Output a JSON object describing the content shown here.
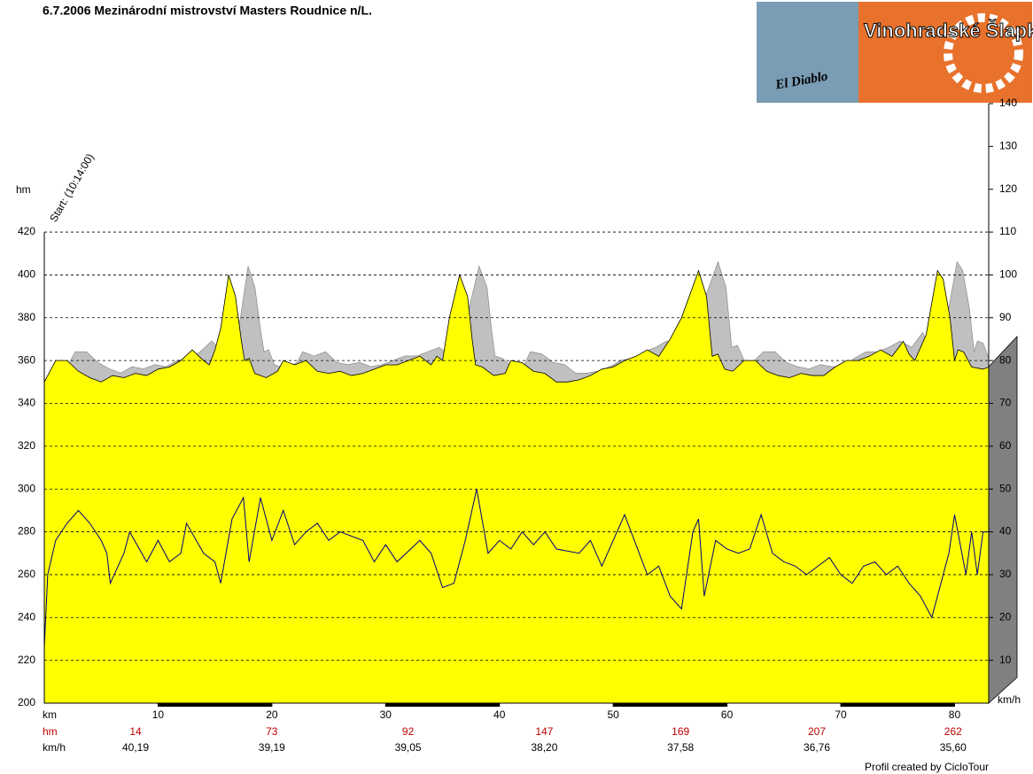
{
  "chart_data": {
    "type": "profile",
    "title": "6.7.2006 Mezinárodní mistrovství Masters Roudnice n/L.",
    "annotation": "Start: (10:14:00)",
    "footer": "Profil created by CicloTour",
    "logos": [
      "El Diablo",
      "Vinohradské Šlapky"
    ],
    "ylabel": "hm",
    "y2label": "km/h",
    "xlabel": "km",
    "xlim": [
      0,
      83
    ],
    "xticks": [
      10,
      20,
      30,
      40,
      50,
      60,
      70,
      80
    ],
    "ylim": [
      200,
      480
    ],
    "yticks": [
      200,
      220,
      240,
      260,
      280,
      300,
      320,
      340,
      360,
      380,
      400,
      420
    ],
    "y2lim": [
      0,
      140
    ],
    "y2ticks": [
      10,
      20,
      30,
      40,
      50,
      60,
      70,
      80,
      90,
      100,
      110,
      120,
      130,
      140
    ],
    "grid": true,
    "series": [
      {
        "color": "#ffff00",
        "x": [
          0,
          0.5,
          1,
          2,
          3,
          4,
          5,
          6,
          7,
          8,
          9,
          10,
          11,
          12,
          13,
          14,
          14.5,
          15,
          15.5,
          16.2,
          16.8,
          17.3,
          17.6,
          18,
          18.5,
          19.5,
          20.5,
          21,
          22,
          23,
          24,
          25,
          26,
          27,
          28,
          29,
          30,
          31,
          32,
          33,
          34,
          34.5,
          35,
          35.6,
          36.5,
          37.2,
          37.6,
          37.9,
          38.5,
          39.5,
          40.5,
          41,
          42,
          43,
          44,
          45,
          46,
          47,
          48,
          49,
          50,
          51,
          52,
          53,
          54,
          55,
          56,
          57.5,
          58.2,
          58.7,
          59.2,
          59.8,
          60.5,
          61.5,
          62.5,
          63.5,
          64.5,
          65.5,
          66.5,
          67.5,
          68.5,
          69.5,
          70.5,
          71.5,
          72.5,
          73.5,
          74.5,
          75.5,
          76,
          76.5,
          77.5,
          78.5,
          79,
          79.6,
          80,
          80.3,
          80.8,
          81.5,
          82.5,
          83
        ],
        "values": [
          350,
          355,
          360,
          360,
          355,
          352,
          350,
          353,
          352,
          354,
          353,
          356,
          357,
          360,
          365,
          360,
          358,
          365,
          375,
          400,
          390,
          370,
          360,
          361,
          354,
          352,
          355,
          360,
          358,
          360,
          355,
          354,
          355,
          353,
          354,
          356,
          358,
          358,
          360,
          362,
          358,
          362,
          360,
          380,
          400,
          390,
          370,
          358,
          357,
          353,
          354,
          360,
          359,
          355,
          354,
          350,
          350,
          351,
          353,
          356,
          357,
          360,
          362,
          365,
          362,
          370,
          380,
          402,
          390,
          362,
          363,
          356,
          355,
          360,
          360,
          355,
          353,
          352,
          354,
          353,
          353,
          357,
          360,
          360,
          362,
          365,
          362,
          369,
          363,
          360,
          372,
          402,
          398,
          380,
          360,
          365,
          364,
          357,
          356,
          357
        ]
      },
      {
        "color": "#000080",
        "axis": "y2",
        "x": [
          0,
          0.3,
          1,
          2,
          3,
          4,
          5,
          5.5,
          5.8,
          7,
          7.5,
          9,
          10,
          11,
          12,
          12.5,
          14,
          15,
          15.5,
          16.5,
          17.5,
          18,
          19,
          20,
          21,
          22,
          23,
          24,
          25,
          26,
          28,
          29,
          30,
          31,
          33,
          34,
          35,
          36,
          37,
          38,
          39,
          40,
          41,
          42,
          43,
          44,
          45,
          47,
          48,
          49,
          51,
          53,
          54,
          55,
          56,
          57,
          57.5,
          58,
          59,
          60,
          61,
          62,
          63,
          64,
          65,
          66,
          67,
          68,
          69,
          70,
          71,
          72,
          73,
          74,
          75,
          76,
          77,
          78,
          78.5,
          79.5,
          80,
          81,
          81.5,
          82,
          82.5,
          83
        ],
        "values": [
          13,
          30,
          38,
          42,
          45,
          42,
          38,
          35,
          28,
          35,
          40,
          33,
          38,
          33,
          35,
          42,
          35,
          33,
          28,
          43,
          48,
          33,
          48,
          38,
          45,
          37,
          40,
          42,
          38,
          40,
          38,
          33,
          37,
          33,
          38,
          35,
          27,
          28,
          38,
          50,
          35,
          38,
          36,
          40,
          37,
          40,
          36,
          35,
          38,
          32,
          44,
          30,
          32,
          25,
          22,
          40,
          43,
          25,
          38,
          36,
          35,
          36,
          44,
          35,
          33,
          32,
          30,
          32,
          34,
          30,
          28,
          32,
          33,
          30,
          32,
          28,
          25,
          20,
          25,
          35,
          44,
          30,
          40,
          30,
          40,
          40
        ]
      }
    ],
    "laps": {
      "hm_label": "hm",
      "hm": [
        "14",
        "73",
        "92",
        "147",
        "169",
        "207",
        "262"
      ],
      "kmh_label": "km/h",
      "kmh": [
        "40,19",
        "39,19",
        "39,05",
        "38,20",
        "37,58",
        "36,76",
        "35,60"
      ]
    }
  }
}
